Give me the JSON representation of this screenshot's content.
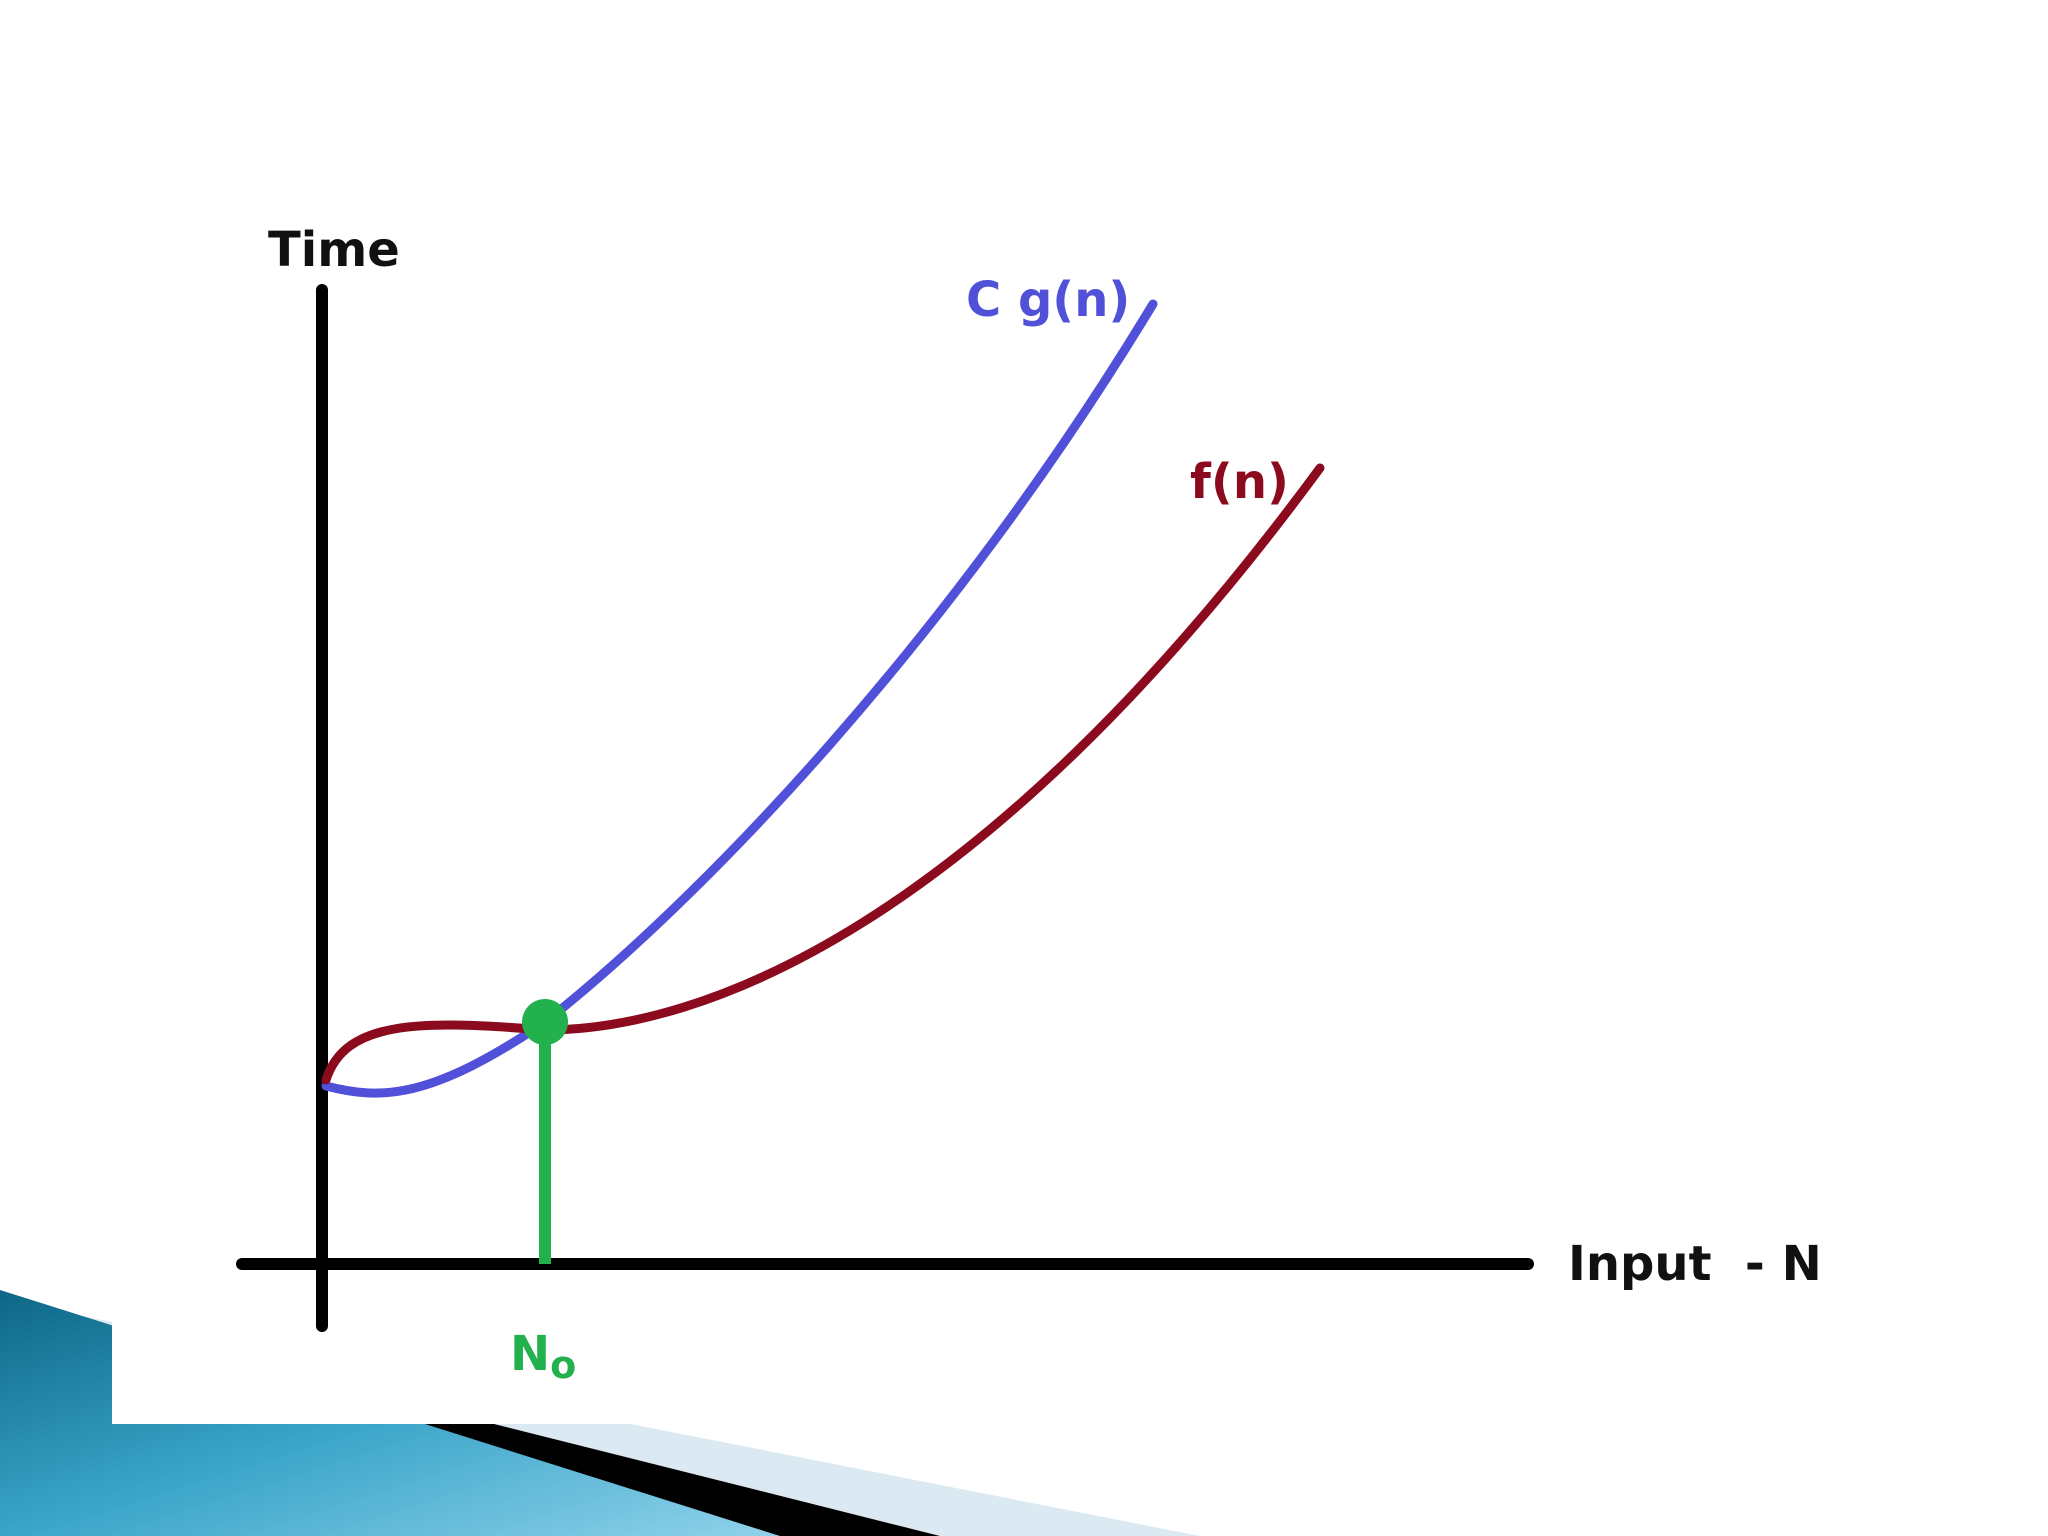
{
  "diagram": {
    "y_axis_label": "Time",
    "x_axis_label": "Input  - N",
    "threshold_label": "N",
    "threshold_subscript": "o",
    "curves": [
      {
        "name": "C g(n)",
        "color": "#5050d8"
      },
      {
        "name": "f(n)",
        "color": "#8b0a1e"
      }
    ],
    "axis_color": "#000000",
    "threshold_color": "#22b14c",
    "background_decoration": {
      "colors": [
        "#0f6f90",
        "#3fa8cc",
        "#7cc9e2",
        "#000000",
        "#dbe9f2"
      ]
    }
  }
}
